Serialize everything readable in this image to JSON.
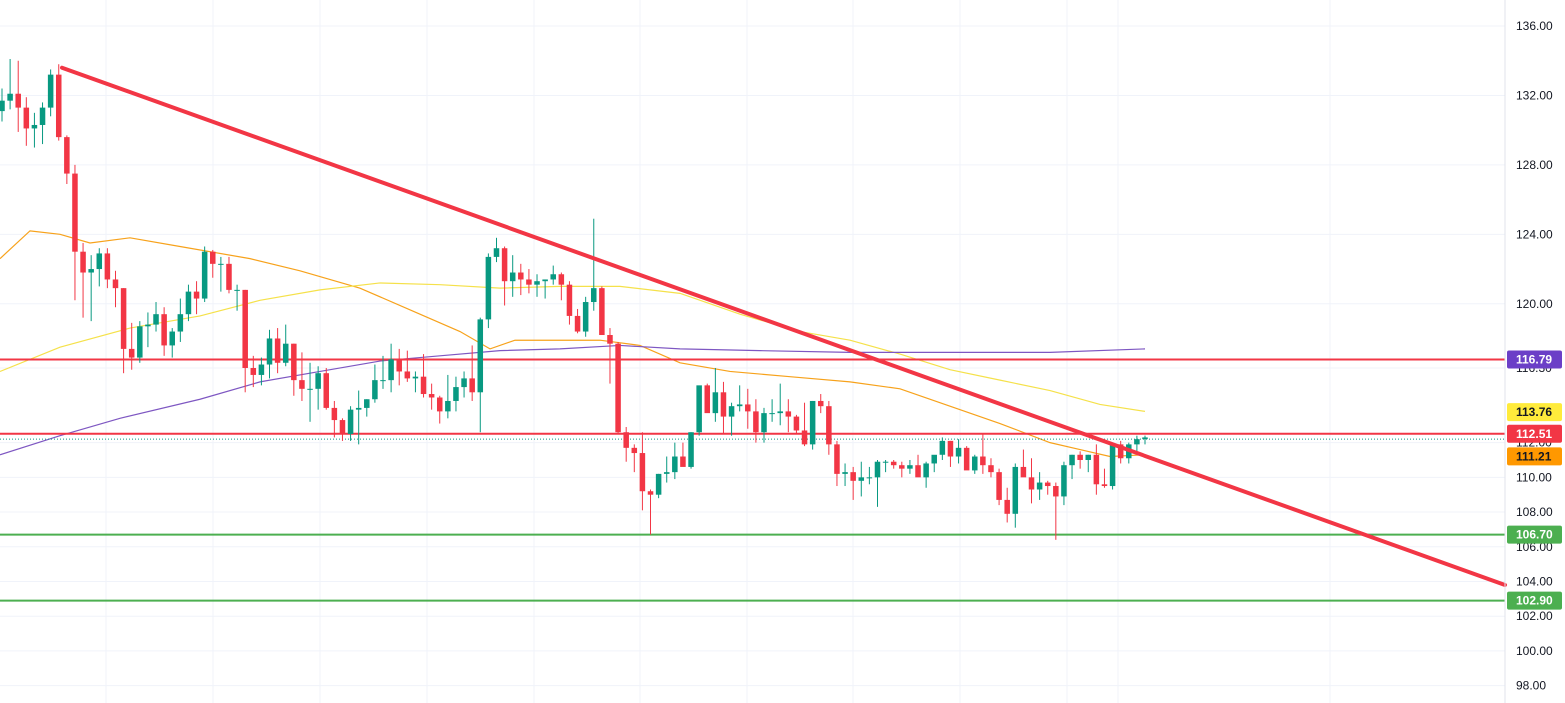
{
  "chart_data": {
    "type": "candlestick",
    "y_axis": {
      "range": [
        97.0,
        137.5
      ],
      "tick_labels": [
        "136.00",
        "132.00",
        "128.00",
        "124.00",
        "120.00",
        "116.30",
        "112.00",
        "110.00",
        "108.00",
        "106.00",
        "104.00",
        "102.00",
        "100.00",
        "98.00"
      ],
      "tick_values": [
        136,
        132,
        128,
        124,
        120,
        116.3,
        112,
        110,
        108,
        106,
        104,
        102,
        100,
        98
      ],
      "side": "right"
    },
    "grid": true,
    "candles": [
      [
        131.1,
        132.4,
        130.5,
        131.7
      ],
      [
        131.7,
        134.1,
        131.2,
        132.1
      ],
      [
        132.1,
        134.0,
        129.9,
        131.3
      ],
      [
        131.3,
        131.9,
        129.1,
        130.1
      ],
      [
        130.1,
        131.0,
        129.0,
        130.3
      ],
      [
        130.3,
        131.6,
        129.2,
        131.3
      ],
      [
        131.3,
        133.5,
        130.8,
        133.2
      ],
      [
        133.2,
        133.8,
        129.4,
        129.6
      ],
      [
        129.6,
        129.7,
        126.9,
        127.5
      ],
      [
        127.5,
        128.0,
        120.2,
        123.0
      ],
      [
        123.0,
        123.5,
        119.2,
        121.8
      ],
      [
        121.8,
        122.8,
        119.0,
        122.0
      ],
      [
        122.0,
        123.2,
        121.0,
        122.9
      ],
      [
        122.9,
        123.2,
        120.9,
        121.4
      ],
      [
        121.4,
        121.9,
        119.8,
        120.9
      ],
      [
        120.9,
        120.9,
        116.0,
        117.4
      ],
      [
        117.4,
        118.9,
        116.2,
        116.9
      ],
      [
        116.9,
        119.0,
        116.6,
        118.7
      ],
      [
        118.7,
        119.5,
        117.5,
        118.8
      ],
      [
        118.8,
        120.1,
        118.4,
        119.4
      ],
      [
        119.4,
        119.8,
        117.0,
        117.6
      ],
      [
        117.6,
        118.6,
        116.9,
        118.4
      ],
      [
        118.4,
        120.3,
        117.8,
        119.4
      ],
      [
        119.4,
        121.1,
        119.0,
        120.7
      ],
      [
        120.7,
        121.3,
        119.4,
        120.3
      ],
      [
        120.3,
        123.3,
        120.1,
        123.0
      ],
      [
        123.0,
        123.1,
        121.5,
        122.3
      ],
      [
        122.3,
        122.7,
        120.7,
        122.3
      ],
      [
        122.3,
        122.7,
        120.6,
        120.8
      ],
      [
        120.8,
        121.1,
        119.6,
        120.8
      ],
      [
        120.8,
        120.8,
        114.9,
        116.3
      ],
      [
        116.3,
        117.0,
        115.2,
        115.9
      ],
      [
        115.9,
        116.9,
        115.3,
        116.5
      ],
      [
        116.5,
        118.5,
        115.7,
        118.0
      ],
      [
        118.0,
        118.6,
        116.0,
        116.6
      ],
      [
        116.6,
        118.8,
        116.4,
        117.7
      ],
      [
        117.7,
        117.7,
        114.7,
        115.6
      ],
      [
        115.6,
        117.2,
        114.4,
        115.1
      ],
      [
        115.1,
        116.6,
        113.2,
        115.1
      ],
      [
        115.1,
        116.4,
        113.9,
        116.0
      ],
      [
        116.0,
        116.3,
        113.9,
        114.0
      ],
      [
        114.0,
        114.4,
        112.3,
        113.3
      ],
      [
        113.3,
        113.4,
        112.1,
        112.5
      ],
      [
        112.5,
        114.1,
        112.1,
        113.9
      ],
      [
        113.9,
        115.0,
        111.9,
        114.0
      ],
      [
        114.0,
        114.5,
        113.5,
        114.5
      ],
      [
        114.5,
        116.5,
        114.3,
        115.6
      ],
      [
        115.6,
        117.0,
        115.1,
        115.6
      ],
      [
        115.6,
        117.7,
        114.9,
        116.8
      ],
      [
        116.8,
        117.4,
        115.3,
        116.1
      ],
      [
        116.1,
        117.3,
        115.5,
        115.7
      ],
      [
        115.7,
        116.1,
        114.9,
        115.8
      ],
      [
        115.8,
        117.1,
        114.6,
        114.8
      ],
      [
        114.8,
        115.4,
        113.9,
        114.6
      ],
      [
        114.6,
        114.7,
        113.1,
        113.8
      ],
      [
        113.8,
        115.9,
        113.4,
        114.4
      ],
      [
        114.4,
        115.8,
        113.8,
        115.2
      ],
      [
        115.2,
        116.1,
        114.6,
        115.7
      ],
      [
        115.7,
        117.6,
        114.4,
        114.9
      ],
      [
        114.9,
        119.2,
        112.6,
        119.1
      ],
      [
        119.1,
        122.9,
        118.6,
        122.7
      ],
      [
        122.7,
        123.8,
        122.4,
        123.2
      ],
      [
        123.2,
        123.3,
        119.9,
        121.3
      ],
      [
        121.3,
        122.8,
        120.4,
        121.8
      ],
      [
        121.8,
        122.3,
        120.5,
        121.4
      ],
      [
        121.4,
        122.0,
        120.6,
        121.1
      ],
      [
        121.1,
        121.7,
        120.4,
        121.3
      ],
      [
        121.3,
        121.4,
        120.3,
        121.4
      ],
      [
        121.4,
        122.2,
        121.1,
        121.7
      ],
      [
        121.7,
        121.8,
        120.2,
        121.1
      ],
      [
        121.1,
        121.3,
        118.8,
        119.3
      ],
      [
        119.3,
        119.7,
        118.3,
        118.4
      ],
      [
        118.4,
        120.4,
        118.1,
        120.1
      ],
      [
        120.1,
        124.9,
        119.6,
        120.9
      ],
      [
        120.9,
        121.0,
        118.6,
        118.2
      ],
      [
        118.2,
        118.6,
        115.4,
        117.7
      ],
      [
        117.7,
        117.8,
        112.5,
        112.6
      ],
      [
        112.6,
        112.9,
        110.9,
        111.7
      ],
      [
        111.7,
        111.9,
        110.3,
        111.4
      ],
      [
        111.4,
        112.6,
        108.1,
        109.2
      ],
      [
        109.2,
        109.3,
        106.7,
        109.0
      ],
      [
        109.0,
        110.2,
        108.8,
        110.2
      ],
      [
        110.2,
        111.2,
        109.7,
        110.3
      ],
      [
        110.3,
        112.0,
        109.9,
        111.2
      ],
      [
        111.2,
        112.0,
        110.8,
        110.6
      ],
      [
        110.6,
        112.6,
        110.5,
        112.6
      ],
      [
        112.6,
        115.1,
        112.4,
        115.3
      ],
      [
        115.3,
        115.4,
        113.9,
        113.7
      ],
      [
        113.7,
        116.3,
        113.2,
        114.9
      ],
      [
        114.9,
        115.5,
        112.5,
        113.5
      ],
      [
        113.5,
        114.3,
        112.4,
        114.1
      ],
      [
        114.1,
        115.3,
        113.8,
        114.2
      ],
      [
        114.2,
        115.1,
        112.8,
        113.8
      ],
      [
        113.8,
        114.5,
        112.0,
        112.6
      ],
      [
        112.6,
        114.0,
        112.0,
        113.7
      ],
      [
        113.7,
        114.5,
        113.2,
        113.7
      ],
      [
        113.7,
        115.4,
        113.0,
        113.8
      ],
      [
        113.8,
        114.5,
        112.6,
        113.5
      ],
      [
        113.5,
        113.6,
        112.5,
        112.7
      ],
      [
        112.7,
        114.3,
        111.8,
        111.9
      ],
      [
        111.9,
        114.4,
        111.6,
        114.4
      ],
      [
        114.4,
        114.8,
        113.7,
        114.1
      ],
      [
        114.1,
        114.4,
        111.3,
        111.9
      ],
      [
        111.9,
        112.1,
        109.5,
        110.2
      ],
      [
        110.2,
        110.8,
        109.5,
        110.3
      ],
      [
        110.3,
        110.6,
        108.7,
        109.8
      ],
      [
        109.8,
        110.9,
        108.9,
        110.0
      ],
      [
        110.0,
        110.6,
        109.6,
        110.0
      ],
      [
        110.0,
        111.0,
        108.3,
        110.9
      ],
      [
        110.9,
        111.0,
        110.3,
        110.9
      ],
      [
        110.9,
        111.0,
        110.5,
        110.7
      ],
      [
        110.7,
        110.9,
        110.0,
        110.5
      ],
      [
        110.5,
        111.0,
        110.2,
        110.7
      ],
      [
        110.7,
        111.3,
        110.3,
        110.0
      ],
      [
        110.0,
        110.9,
        109.4,
        110.8
      ],
      [
        110.8,
        111.0,
        110.3,
        111.3
      ],
      [
        111.3,
        112.3,
        111.0,
        112.1
      ],
      [
        112.1,
        112.1,
        110.6,
        111.2
      ],
      [
        111.2,
        112.2,
        110.8,
        111.7
      ],
      [
        111.7,
        111.8,
        110.5,
        110.4
      ],
      [
        110.4,
        111.3,
        110.2,
        111.2
      ],
      [
        111.2,
        112.5,
        110.2,
        110.7
      ],
      [
        110.7,
        111.1,
        110.0,
        110.3
      ],
      [
        110.3,
        110.5,
        108.4,
        108.7
      ],
      [
        108.7,
        109.4,
        107.4,
        107.9
      ],
      [
        107.9,
        110.8,
        107.1,
        110.6
      ],
      [
        110.6,
        111.6,
        110.3,
        110.0
      ],
      [
        110.0,
        111.1,
        108.5,
        109.3
      ],
      [
        109.3,
        110.3,
        108.7,
        109.7
      ],
      [
        109.7,
        109.8,
        109.0,
        109.5
      ],
      [
        109.5,
        109.7,
        106.4,
        108.9
      ],
      [
        108.9,
        110.9,
        108.4,
        110.7
      ],
      [
        110.7,
        111.3,
        109.9,
        111.3
      ],
      [
        111.3,
        111.5,
        110.5,
        111.0
      ],
      [
        111.0,
        111.3,
        110.3,
        111.3
      ],
      [
        111.3,
        111.9,
        109.0,
        109.6
      ],
      [
        109.6,
        110.5,
        109.4,
        109.5
      ],
      [
        109.5,
        112.0,
        109.3,
        111.9
      ],
      [
        111.9,
        112.1,
        110.8,
        111.1
      ],
      [
        111.1,
        112.0,
        110.8,
        111.9
      ],
      [
        111.9,
        112.4,
        111.4,
        112.2
      ],
      [
        112.2,
        112.4,
        111.9,
        112.3
      ]
    ],
    "overlays": [
      {
        "color": "#f7a21b",
        "values": [
          [
            0,
            122.6
          ],
          [
            30,
            124.2
          ],
          [
            60,
            124.0
          ],
          [
            90,
            123.5
          ],
          [
            130,
            123.8
          ],
          [
            180,
            123.3
          ],
          [
            250,
            122.6
          ],
          [
            300,
            121.9
          ],
          [
            360,
            120.9
          ],
          [
            420,
            119.4
          ],
          [
            460,
            118.4
          ],
          [
            490,
            117.4
          ],
          [
            515,
            117.9
          ],
          [
            560,
            117.9
          ],
          [
            600,
            117.9
          ],
          [
            640,
            117.6
          ],
          [
            680,
            116.6
          ],
          [
            730,
            116.1
          ],
          [
            790,
            115.8
          ],
          [
            850,
            115.5
          ],
          [
            900,
            115.1
          ],
          [
            950,
            114.1
          ],
          [
            1000,
            113.1
          ],
          [
            1050,
            112.0
          ],
          [
            1080,
            111.6
          ],
          [
            1110,
            111.2
          ],
          [
            1145,
            111.3
          ]
        ]
      },
      {
        "color": "#f5e14a",
        "values": [
          [
            0,
            116.1
          ],
          [
            60,
            117.5
          ],
          [
            130,
            118.6
          ],
          [
            200,
            119.3
          ],
          [
            260,
            120.2
          ],
          [
            320,
            120.8
          ],
          [
            380,
            121.2
          ],
          [
            440,
            121.1
          ],
          [
            500,
            120.9
          ],
          [
            560,
            121.0
          ],
          [
            620,
            121.0
          ],
          [
            680,
            120.6
          ],
          [
            740,
            119.4
          ],
          [
            800,
            118.4
          ],
          [
            850,
            117.9
          ],
          [
            900,
            117.1
          ],
          [
            950,
            116.2
          ],
          [
            1000,
            115.6
          ],
          [
            1050,
            115.0
          ],
          [
            1100,
            114.2
          ],
          [
            1145,
            113.8
          ]
        ]
      },
      {
        "color": "#7e57c2",
        "values": [
          [
            0,
            111.3
          ],
          [
            60,
            112.4
          ],
          [
            120,
            113.4
          ],
          [
            200,
            114.5
          ],
          [
            260,
            115.5
          ],
          [
            320,
            116.1
          ],
          [
            380,
            116.7
          ],
          [
            440,
            117.0
          ],
          [
            500,
            117.3
          ],
          [
            560,
            117.4
          ],
          [
            620,
            117.6
          ],
          [
            680,
            117.4
          ],
          [
            760,
            117.3
          ],
          [
            850,
            117.2
          ],
          [
            950,
            117.2
          ],
          [
            1050,
            117.2
          ],
          [
            1145,
            117.4
          ]
        ]
      }
    ],
    "horizontal_levels": [
      {
        "value": 116.79,
        "color": "#f23645",
        "label": "116.79",
        "label_bg": "#6b3fc7"
      },
      {
        "value": 112.51,
        "color": "#f23645",
        "label": "112.51",
        "label_bg": "#f23645"
      },
      {
        "value": 106.7,
        "color": "#4caf50",
        "label": "106.70",
        "label_bg": "#4caf50"
      },
      {
        "value": 102.9,
        "color": "#4caf50",
        "label": "102.90",
        "label_bg": "#4caf50"
      }
    ],
    "trendline": {
      "color": "#f23645",
      "start": [
        62,
        133.6
      ],
      "end": [
        1505,
        103.8
      ]
    },
    "current_price_dotted": 112.2,
    "extra_badges": [
      {
        "label": "113.76",
        "value": 113.76,
        "bg": "#ffeb3b",
        "fg": "#131722"
      },
      {
        "label": "111.21",
        "value": 111.21,
        "bg": "#ff9800",
        "fg": "#131722"
      }
    ],
    "up_color": "#089981",
    "down_color": "#f23645"
  }
}
